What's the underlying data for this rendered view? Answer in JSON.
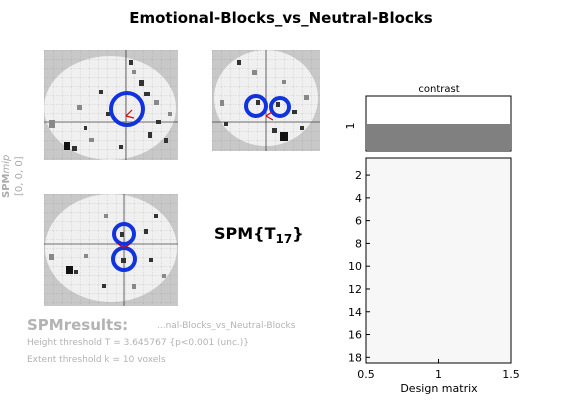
{
  "title": "Emotional-Blocks_vs_Neutral-Blocks",
  "side": {
    "spm": "SPM",
    "mip": "mip",
    "coords": "[0, 0, 0]"
  },
  "stat": {
    "base": "SPM{T",
    "df": "17",
    "close": "}"
  },
  "results": {
    "title": "SPMresults:",
    "file": "...nal-Blocks_vs_Neutral-Blocks",
    "height_threshold": "Height threshold T = 3.645767  {p<0.001 (unc.)}",
    "extent_threshold": "Extent threshold k = 10 voxels"
  },
  "colors": {
    "contrast_bar": "#808080",
    "design_matrix": "#f7f7f7",
    "circle": "#1133dd",
    "arrow": "#dd0000"
  },
  "chart_data": [
    {
      "type": "bar",
      "title": "contrast",
      "categories": [
        "1"
      ],
      "values": [
        1
      ],
      "ylabel_ticks": [
        "1"
      ]
    },
    {
      "type": "heatmap",
      "xlabel": "Design matrix",
      "xlim": [
        0.5,
        1.5
      ],
      "ylim": [
        0.5,
        18.5
      ],
      "xticks": [
        "0.5",
        "1",
        "1.5"
      ],
      "yticks": [
        "2",
        "4",
        "6",
        "8",
        "10",
        "12",
        "14",
        "16",
        "18"
      ]
    }
  ]
}
